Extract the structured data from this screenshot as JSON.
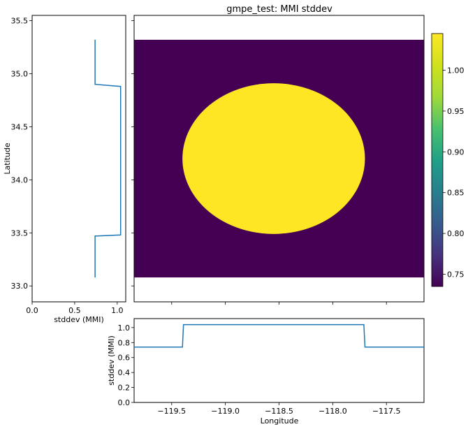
{
  "chart_data": [
    {
      "panel": "map",
      "type": "heatmap",
      "title": "gmpe_test: MMI stddev",
      "xlim": [
        -119.85,
        -117.15
      ],
      "ylim": [
        32.85,
        35.55
      ],
      "data_extent": {
        "lon": [
          -119.85,
          -117.15
        ],
        "lat": [
          33.08,
          35.32
        ]
      },
      "background_value": 0.74,
      "circle": {
        "center_lon": -118.55,
        "center_lat": 34.2,
        "radius_lon": 0.85,
        "radius_lat": 0.71,
        "value": 1.04
      },
      "colormap": "viridis",
      "colorbar": {
        "min": 0.735,
        "max": 1.045,
        "ticks": [
          0.75,
          0.8,
          0.85,
          0.9,
          0.95,
          1.0
        ],
        "tick_labels": [
          "0.75",
          "0.80",
          "0.85",
          "0.90",
          "0.95",
          "1.00"
        ]
      },
      "xticks": [
        -119.5,
        -119.0,
        -118.5,
        -118.0,
        -117.5
      ],
      "yticks": [
        33.0,
        33.5,
        34.0,
        34.5,
        35.0,
        35.5
      ],
      "colors": {
        "low": "#440154",
        "high": "#fde725"
      }
    },
    {
      "panel": "lat-profile",
      "type": "line",
      "xlabel": "stddev (MMI)",
      "ylabel": "Latitude",
      "xlim": [
        0.0,
        1.1
      ],
      "ylim": [
        32.85,
        35.55
      ],
      "xticks": [
        0.0,
        0.5,
        1.0
      ],
      "xtick_labels": [
        "0.0",
        "0.5",
        "1.0"
      ],
      "yticks": [
        33.0,
        33.5,
        34.0,
        34.5,
        35.0,
        35.5
      ],
      "ytick_labels": [
        "33.0",
        "33.5",
        "34.0",
        "34.5",
        "35.0",
        "35.5"
      ],
      "series": [
        {
          "x": [
            0.74,
            0.74,
            0.74,
            1.04,
            1.04,
            1.04,
            1.04,
            1.04,
            0.74,
            0.74,
            0.74
          ],
          "y": [
            33.08,
            33.3,
            33.47,
            33.48,
            33.7,
            34.0,
            34.4,
            34.88,
            34.9,
            35.1,
            35.32
          ],
          "color": "#1f77b4"
        }
      ]
    },
    {
      "panel": "lon-profile",
      "type": "line",
      "xlabel": "Longitude",
      "ylabel": "stddev (MMI)",
      "xlim": [
        -119.85,
        -117.15
      ],
      "ylim": [
        0.0,
        1.12
      ],
      "xticks": [
        -119.5,
        -119.0,
        -118.5,
        -118.0,
        -117.5
      ],
      "xtick_labels": [
        "−119.5",
        "−119.0",
        "−118.5",
        "−118.0",
        "−117.5"
      ],
      "yticks": [
        0.0,
        0.2,
        0.4,
        0.6,
        0.8,
        1.0
      ],
      "ytick_labels": [
        "0.0",
        "0.2",
        "0.4",
        "0.6",
        "0.8",
        "1.0"
      ],
      "series": [
        {
          "x": [
            -119.85,
            -119.4,
            -119.39,
            -119.0,
            -118.55,
            -118.0,
            -117.71,
            -117.7,
            -117.15
          ],
          "y": [
            0.74,
            0.74,
            1.04,
            1.04,
            1.04,
            1.04,
            1.04,
            0.74,
            0.74
          ],
          "color": "#1f77b4"
        }
      ]
    }
  ]
}
